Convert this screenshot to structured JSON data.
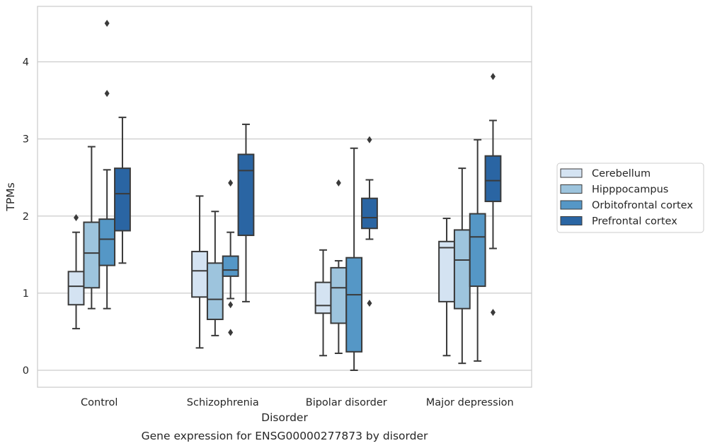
{
  "chart_data": {
    "type": "box",
    "caption": "Gene expression for ENSG00000277873 by disorder",
    "xlabel": "Disorder",
    "ylabel": "TPMs",
    "ylim": [
      -0.22,
      4.72
    ],
    "yticks": [
      0,
      1,
      2,
      3,
      4
    ],
    "grid": "horizontal",
    "legend_position": "right",
    "categories": [
      "Control",
      "Schizophrenia",
      "Bipolar disorder",
      "Major depression"
    ],
    "series": [
      {
        "name": "Cerebellum",
        "color": "#d4e3f2",
        "boxes": [
          {
            "whislo": 0.54,
            "q1": 0.85,
            "med": 1.09,
            "q3": 1.28,
            "whishi": 1.79,
            "fliers": [
              1.98
            ]
          },
          {
            "whislo": 0.29,
            "q1": 0.95,
            "med": 1.29,
            "q3": 1.54,
            "whishi": 2.26,
            "fliers": []
          },
          {
            "whislo": 0.19,
            "q1": 0.74,
            "med": 0.84,
            "q3": 1.14,
            "whishi": 1.56,
            "fliers": []
          },
          {
            "whislo": 0.19,
            "q1": 0.89,
            "med": 1.59,
            "q3": 1.67,
            "whishi": 1.97,
            "fliers": []
          }
        ]
      },
      {
        "name": "Hipppocampus",
        "color": "#9dc4dd",
        "boxes": [
          {
            "whislo": 0.8,
            "q1": 1.07,
            "med": 1.52,
            "q3": 1.92,
            "whishi": 2.9,
            "fliers": []
          },
          {
            "whislo": 0.45,
            "q1": 0.66,
            "med": 0.92,
            "q3": 1.39,
            "whishi": 2.06,
            "fliers": []
          },
          {
            "whislo": 0.22,
            "q1": 0.61,
            "med": 1.07,
            "q3": 1.33,
            "whishi": 1.42,
            "fliers": [
              2.43
            ]
          },
          {
            "whislo": 0.09,
            "q1": 0.8,
            "med": 1.43,
            "q3": 1.82,
            "whishi": 2.62,
            "fliers": []
          }
        ]
      },
      {
        "name": "Orbitofrontal cortex",
        "color": "#5597c6",
        "boxes": [
          {
            "whislo": 0.8,
            "q1": 1.36,
            "med": 1.7,
            "q3": 1.96,
            "whishi": 2.6,
            "fliers": [
              3.59,
              4.5
            ]
          },
          {
            "whislo": 0.93,
            "q1": 1.22,
            "med": 1.3,
            "q3": 1.48,
            "whishi": 1.79,
            "fliers": [
              0.49,
              0.85,
              2.43
            ]
          },
          {
            "whislo": 0.0,
            "q1": 0.24,
            "med": 0.98,
            "q3": 1.46,
            "whishi": 2.88,
            "fliers": []
          },
          {
            "whislo": 0.12,
            "q1": 1.09,
            "med": 1.73,
            "q3": 2.03,
            "whishi": 2.99,
            "fliers": []
          }
        ]
      },
      {
        "name": "Prefrontal cortex",
        "color": "#2a65a3",
        "boxes": [
          {
            "whislo": 1.39,
            "q1": 1.81,
            "med": 2.29,
            "q3": 2.62,
            "whishi": 3.28,
            "fliers": []
          },
          {
            "whislo": 0.89,
            "q1": 1.75,
            "med": 2.59,
            "q3": 2.8,
            "whishi": 3.19,
            "fliers": []
          },
          {
            "whislo": 1.7,
            "q1": 1.84,
            "med": 1.98,
            "q3": 2.23,
            "whishi": 2.47,
            "fliers": [
              0.87,
              2.99
            ]
          },
          {
            "whislo": 1.58,
            "q1": 2.19,
            "med": 2.46,
            "q3": 2.78,
            "whishi": 3.24,
            "fliers": [
              0.75,
              3.81
            ]
          }
        ]
      }
    ]
  }
}
